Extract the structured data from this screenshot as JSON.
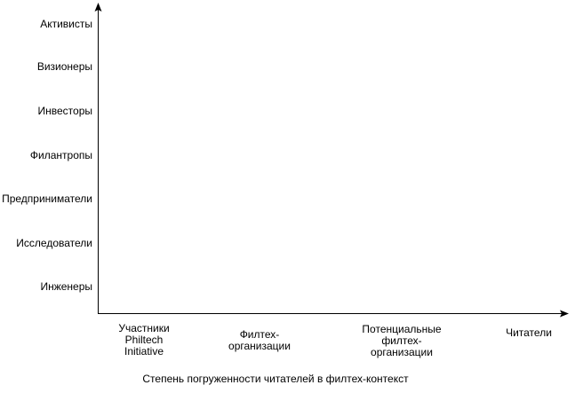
{
  "diagram": {
    "y_axis": {
      "categories": [
        "Активисты",
        "Визионеры",
        "Инвесторы",
        "Филантропы",
        "Предприниматели",
        "Исследователи",
        "Инженеры"
      ]
    },
    "x_axis": {
      "categories": [
        "Участники\nPhiltech\nInitiative",
        "Филтех-\nорганизации",
        "Потенциальные\nфилтех-\nорганизации",
        "Читатели"
      ],
      "title": "Степень погруженности читателей в филтех-контекст"
    },
    "colors": {
      "axis": "#000000",
      "text": "#000000",
      "background": "#ffffff"
    }
  }
}
